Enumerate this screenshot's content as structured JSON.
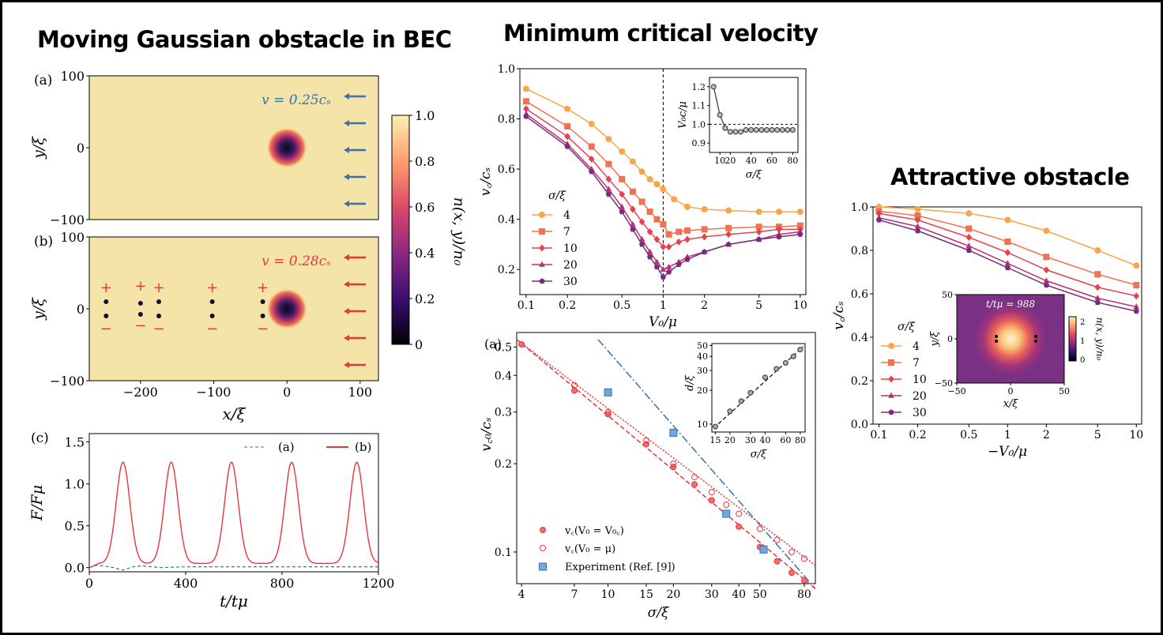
{
  "titles": {
    "left": "Moving Gaussian obstacle in BEC",
    "middle": "Minimum critical velocity",
    "right": "Attractive obstacle"
  },
  "colors": {
    "s4": "#f9a64a",
    "s7": "#f27152",
    "s10": "#e5424f",
    "s20": "#b5336a",
    "s30": "#7a2b7f",
    "red": "#e8363a",
    "blue": "#3a6fb0",
    "density_bg": "#f5e4a8",
    "inset_line": "#333333"
  },
  "density_maps": {
    "panel_a": {
      "label": "(a)",
      "velocity_label": "v = 0.25c_s",
      "arrows": 5,
      "arrow_color": "blue"
    },
    "panel_b": {
      "label": "(b)",
      "velocity_label": "v = 0.28c_s",
      "arrows": 5,
      "arrow_color": "red",
      "vortex_pair_x": [
        -247,
        -200,
        -175,
        -102,
        -33
      ]
    },
    "x_ticks": [
      "−200",
      "−100",
      "0",
      "100"
    ],
    "y_ticks": [
      "100",
      "0",
      "−100"
    ],
    "xlabel": "x/ξ",
    "ylabel": "y/ξ",
    "colorbar": {
      "label": "n(x, y)/n₀",
      "ticks": [
        "1.0",
        "0.8",
        "0.6",
        "0.4",
        "0.2",
        "0"
      ]
    }
  },
  "chart_data": [
    {
      "id": "force",
      "type": "line",
      "panel_label": "(c)",
      "xlabel": "t/t_μ",
      "ylabel": "F/F_μ",
      "xlim": [
        0,
        1200
      ],
      "ylim": [
        -0.05,
        1.6
      ],
      "x_ticks": [
        0,
        400,
        800,
        1200
      ],
      "y_ticks": [
        0.0,
        0.5,
        1.0,
        1.5
      ],
      "legend_position": "top-right",
      "series": [
        {
          "name": "(a)",
          "style": "dashed",
          "color": "blue",
          "x": [
            0,
            30,
            60,
            100,
            140,
            180,
            220,
            260,
            300,
            400,
            600,
            800,
            1000,
            1200
          ],
          "y": [
            0.0,
            0.03,
            0.02,
            0.0,
            -0.03,
            0.01,
            0.02,
            0.01,
            0.0,
            0.01,
            0.01,
            0.01,
            0.01,
            0.01
          ]
        },
        {
          "name": "(b)",
          "style": "solid",
          "color": "red",
          "peaks_t": [
            140,
            340,
            590,
            840,
            1110
          ],
          "peak_value": 1.21,
          "baseline": 0.0,
          "peak_width": 40
        }
      ]
    },
    {
      "id": "critical_velocity",
      "type": "line",
      "xscale": "log",
      "xlabel": "V₀/μ",
      "ylabel": "v_c/c_s",
      "xlim": [
        0.09,
        11
      ],
      "ylim": [
        0.1,
        1.0
      ],
      "x_ticks": [
        0.1,
        0.2,
        0.5,
        1,
        2,
        5,
        10
      ],
      "x_tick_labels": [
        "0.1",
        "0.2",
        "0.5",
        "1",
        "2",
        "5",
        "10"
      ],
      "y_ticks": [
        0.2,
        0.4,
        0.6,
        0.8,
        1.0
      ],
      "vline": 1,
      "legend_title": "σ/ξ",
      "legend_position": "left",
      "series": [
        {
          "name": "4",
          "marker": "circle",
          "color": "s4",
          "x": [
            0.1,
            0.2,
            0.3,
            0.4,
            0.5,
            0.6,
            0.7,
            0.8,
            0.9,
            1.0,
            1.2,
            1.5,
            2,
            3,
            5,
            7,
            10
          ],
          "y": [
            0.92,
            0.84,
            0.78,
            0.72,
            0.67,
            0.63,
            0.59,
            0.56,
            0.54,
            0.52,
            0.48,
            0.45,
            0.44,
            0.435,
            0.43,
            0.43,
            0.43
          ]
        },
        {
          "name": "7",
          "marker": "square",
          "color": "s7",
          "x": [
            0.1,
            0.2,
            0.3,
            0.4,
            0.5,
            0.6,
            0.7,
            0.8,
            0.9,
            1.0,
            1.1,
            1.3,
            1.5,
            2,
            3,
            5,
            7,
            10
          ],
          "y": [
            0.87,
            0.77,
            0.69,
            0.62,
            0.56,
            0.51,
            0.47,
            0.43,
            0.4,
            0.38,
            0.34,
            0.35,
            0.355,
            0.36,
            0.365,
            0.37,
            0.37,
            0.375
          ]
        },
        {
          "name": "10",
          "marker": "diamond",
          "color": "s10",
          "x": [
            0.1,
            0.2,
            0.3,
            0.4,
            0.5,
            0.6,
            0.7,
            0.8,
            0.9,
            1.0,
            1.1,
            1.3,
            1.5,
            2,
            3,
            5,
            7,
            10
          ],
          "y": [
            0.84,
            0.73,
            0.64,
            0.56,
            0.5,
            0.44,
            0.39,
            0.35,
            0.32,
            0.29,
            0.29,
            0.31,
            0.32,
            0.33,
            0.34,
            0.35,
            0.36,
            0.36
          ]
        },
        {
          "name": "20",
          "marker": "triangle",
          "color": "s20",
          "x": [
            0.1,
            0.2,
            0.3,
            0.4,
            0.5,
            0.6,
            0.7,
            0.8,
            0.9,
            1.0,
            1.1,
            1.3,
            1.5,
            2,
            3,
            5,
            7,
            10
          ],
          "y": [
            0.82,
            0.7,
            0.6,
            0.52,
            0.45,
            0.38,
            0.32,
            0.27,
            0.23,
            0.2,
            0.21,
            0.23,
            0.25,
            0.27,
            0.3,
            0.32,
            0.34,
            0.35
          ]
        },
        {
          "name": "30",
          "marker": "pentagon",
          "color": "s30",
          "x": [
            0.1,
            0.2,
            0.3,
            0.4,
            0.5,
            0.6,
            0.7,
            0.8,
            0.9,
            1.0,
            1.1,
            1.3,
            1.5,
            2,
            3,
            5,
            7,
            10
          ],
          "y": [
            0.81,
            0.69,
            0.59,
            0.5,
            0.43,
            0.36,
            0.3,
            0.25,
            0.21,
            0.17,
            0.19,
            0.22,
            0.24,
            0.27,
            0.3,
            0.32,
            0.33,
            0.34
          ]
        }
      ]
    },
    {
      "id": "critical_velocity_inset",
      "type": "line",
      "xlabel": "σ/ξ",
      "ylabel": "V₀c/μ",
      "xlim": [
        0,
        85
      ],
      "ylim": [
        0.85,
        1.25
      ],
      "x_ticks": [
        10,
        20,
        30,
        40,
        50,
        60,
        70,
        80
      ],
      "y_ticks": [
        0.9,
        1.0,
        1.1,
        1.2
      ],
      "hline": 1.0,
      "series": [
        {
          "name": "",
          "marker": "circle",
          "x": [
            4,
            10,
            15,
            20,
            25,
            30,
            35,
            40,
            45,
            50,
            55,
            60,
            65,
            70,
            75,
            80
          ],
          "y": [
            1.2,
            1.05,
            0.98,
            0.96,
            0.96,
            0.96,
            0.97,
            0.97,
            0.97,
            0.97,
            0.97,
            0.97,
            0.97,
            0.97,
            0.97,
            0.97
          ]
        }
      ]
    },
    {
      "id": "minimum_velocity",
      "type": "scatter",
      "xscale": "log",
      "yscale": "log",
      "panel_label": "(a)",
      "xlabel": "σ/ξ",
      "ylabel": "v_c0/c_s",
      "xlim": [
        3.8,
        90
      ],
      "ylim": [
        0.078,
        0.56
      ],
      "x_ticks": [
        4,
        7,
        10,
        15,
        20,
        30,
        40,
        50,
        80
      ],
      "x_tick_labels": [
        "4",
        "7",
        "10",
        "15",
        "20",
        "30",
        "40",
        "50",
        "80"
      ],
      "y_ticks": [
        0.1,
        0.2,
        0.3,
        0.4,
        0.5
      ],
      "y_tick_labels": [
        "0.1",
        "0.2",
        "0.3",
        "0.4",
        "0.5"
      ],
      "legend_position": "lower-left",
      "series": [
        {
          "name": "v_c(V₀ = V₀c)",
          "marker": "circle-filled",
          "x": [
            4,
            7,
            10,
            15,
            20,
            25,
            30,
            35,
            40,
            50,
            60,
            70,
            80
          ],
          "y": [
            0.51,
            0.355,
            0.295,
            0.233,
            0.195,
            0.17,
            0.15,
            0.135,
            0.122,
            0.104,
            0.093,
            0.085,
            0.08
          ]
        },
        {
          "name": "v_c(V₀ = μ)",
          "marker": "circle-open",
          "x": [
            4,
            7,
            10,
            15,
            20,
            25,
            30,
            35,
            40,
            50,
            60,
            70,
            80
          ],
          "y": [
            0.51,
            0.37,
            0.3,
            0.24,
            0.2,
            0.18,
            0.16,
            0.145,
            0.135,
            0.12,
            0.11,
            0.1,
            0.095
          ]
        },
        {
          "name": "Experiment (Ref. [9])",
          "marker": "square",
          "x": [
            10,
            20,
            35,
            52
          ],
          "y": [
            0.35,
            0.255,
            0.135,
            0.102
          ]
        }
      ],
      "fit_lines": [
        {
          "style": "dashdot",
          "color": "blue",
          "x": [
            9,
            90
          ],
          "y": [
            0.53,
            0.075
          ]
        },
        {
          "style": "dashed",
          "color": "red",
          "x": [
            3.8,
            90
          ],
          "y": [
            0.53,
            0.075
          ]
        },
        {
          "style": "dotted",
          "color": "red",
          "x": [
            3.8,
            90
          ],
          "y": [
            0.53,
            0.09
          ]
        }
      ]
    },
    {
      "id": "minimum_velocity_inset",
      "type": "scatter",
      "xscale": "log",
      "yscale": "log",
      "xlabel": "σ/ξ",
      "ylabel": "d/ξ",
      "xlim": [
        14,
        88
      ],
      "ylim": [
        8.5,
        52
      ],
      "x_ticks": [
        15,
        20,
        30,
        40,
        60,
        80
      ],
      "y_ticks": [
        10,
        20,
        30,
        40,
        50
      ],
      "series": [
        {
          "name": "",
          "marker": "circle",
          "x": [
            15,
            20,
            25,
            30,
            40,
            50,
            60,
            70,
            80
          ],
          "y": [
            9.5,
            13,
            16,
            19,
            26,
            31,
            35,
            40,
            46
          ]
        }
      ]
    },
    {
      "id": "attractive",
      "type": "line",
      "xscale": "log",
      "xlabel": "−V₀/μ",
      "ylabel": "v_c/c_s",
      "xlim": [
        0.09,
        11
      ],
      "ylim": [
        0.0,
        1.0
      ],
      "x_ticks": [
        0.1,
        0.2,
        0.5,
        1,
        2,
        5,
        10
      ],
      "x_tick_labels": [
        "0.1",
        "0.2",
        "0.5",
        "1",
        "2",
        "5",
        "10"
      ],
      "y_ticks": [
        0.0,
        0.2,
        0.4,
        0.6,
        0.8,
        1.0
      ],
      "legend_title": "σ/ξ",
      "legend_position": "lower-left",
      "series": [
        {
          "name": "4",
          "marker": "circle",
          "color": "s4",
          "x": [
            0.1,
            0.2,
            0.5,
            1,
            2,
            5,
            10
          ],
          "y": [
            1.0,
            0.99,
            0.97,
            0.94,
            0.89,
            0.8,
            0.73
          ]
        },
        {
          "name": "7",
          "marker": "square",
          "color": "s7",
          "x": [
            0.1,
            0.2,
            0.5,
            1,
            2,
            5,
            10
          ],
          "y": [
            0.98,
            0.96,
            0.9,
            0.84,
            0.77,
            0.69,
            0.64
          ]
        },
        {
          "name": "10",
          "marker": "diamond",
          "color": "s10",
          "x": [
            0.1,
            0.2,
            0.5,
            1,
            2,
            5,
            10
          ],
          "y": [
            0.97,
            0.94,
            0.86,
            0.79,
            0.71,
            0.63,
            0.59
          ]
        },
        {
          "name": "20",
          "marker": "triangle",
          "color": "s20",
          "x": [
            0.1,
            0.2,
            0.5,
            1,
            2,
            5,
            10
          ],
          "y": [
            0.95,
            0.91,
            0.82,
            0.74,
            0.66,
            0.58,
            0.54
          ]
        },
        {
          "name": "30",
          "marker": "pentagon",
          "color": "s30",
          "x": [
            0.1,
            0.2,
            0.5,
            1,
            2,
            5,
            10
          ],
          "y": [
            0.94,
            0.89,
            0.8,
            0.72,
            0.64,
            0.56,
            0.52
          ]
        }
      ]
    },
    {
      "id": "attractive_inset",
      "type": "heatmap",
      "label": "t/t_μ = 988",
      "xlabel": "x/ξ",
      "ylabel": "y/ξ",
      "x_ticks": [
        -50,
        0,
        50
      ],
      "y_ticks": [
        50,
        0,
        -50
      ],
      "colorbar": {
        "label": "n(x, y)/n₀",
        "ticks": [
          2,
          1,
          0
        ]
      }
    }
  ]
}
